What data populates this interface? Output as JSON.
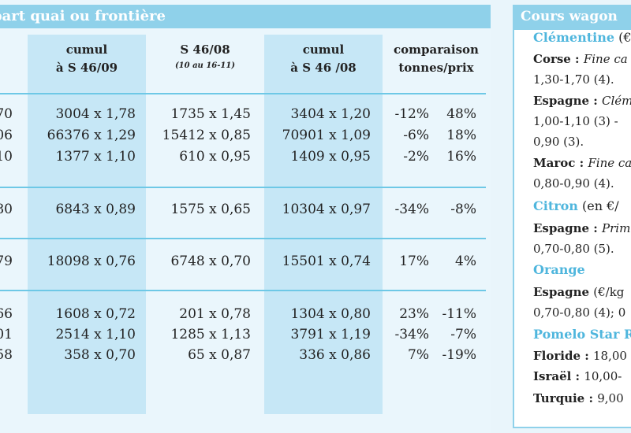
{
  "left": {
    "header": "part quai ou frontière",
    "columns": [
      {
        "line1": "",
        "line2": ")"
      },
      {
        "line1": "cumul",
        "line2": "à S 46/09"
      },
      {
        "line1": "S 46/08",
        "line2": "(10 au 16-11)"
      },
      {
        "line1": "cumul",
        "line2": "à S 46 /08"
      },
      {
        "line1": "comparaison",
        "line2": "tonnes/prix"
      }
    ],
    "rows": [
      [
        "70",
        "3004 x 1,78",
        "1735 x 1,45",
        "3404 x 1,20",
        "-12%",
        "48%"
      ],
      [
        "06",
        "66376 x 1,29",
        "15412 x 0,85",
        "70901 x 1,09",
        "-6%",
        "18%"
      ],
      [
        "10",
        "1377 x 1,10",
        "610 x 0,95",
        "1409 x 0,95",
        "-2%",
        "16%"
      ],
      [
        "80",
        "6843 x 0,89",
        "1575 x 0,65",
        "10304 x 0,97",
        "-34%",
        "-8%"
      ],
      [
        "79",
        "18098 x 0,76",
        "6748 x 0,70",
        "15501 x 0,74",
        "17%",
        "4%"
      ],
      [
        "66",
        "1608 x 0,72",
        "201 x 0,78",
        "1304 x 0,80",
        "23%",
        "-11%"
      ],
      [
        "01",
        "2514 x 1,10",
        "1285 x 1,13",
        "3791 x 1,19",
        "-34%",
        "-7%"
      ],
      [
        "58",
        "358 x 0,70",
        "65 x 0,87",
        "336 x 0,86",
        "7%",
        "-19%"
      ]
    ]
  },
  "right": {
    "header": "Cours wagon",
    "lines": [
      {
        "type": "sec",
        "a": "Clémentine",
        "b": " (€"
      },
      {
        "type": "txt",
        "a": "Corse : ",
        "b": "Fine ca"
      },
      {
        "type": "plain",
        "a": "1,30-1,70 (4)."
      },
      {
        "type": "txt",
        "a": "Espagne : ",
        "b": "Clém"
      },
      {
        "type": "plain",
        "a": "1,00-1,10 (3) -"
      },
      {
        "type": "plain",
        "a": "0,90 (3)."
      },
      {
        "type": "txt",
        "a": "Maroc : ",
        "b": "Fine ca"
      },
      {
        "type": "plain",
        "a": "0,80-0,90 (4)."
      },
      {
        "type": "sec",
        "a": "Citron",
        "b": " (en €/"
      },
      {
        "type": "txt",
        "a": "Espagne : ",
        "b": "Prim"
      },
      {
        "type": "plain",
        "a": "0,70-0,80 (5)."
      },
      {
        "type": "sec",
        "a": "Orange",
        "b": ""
      },
      {
        "type": "txtn",
        "a": "Espagne ",
        "b": "(€/kg"
      },
      {
        "type": "plain",
        "a": "0,70-0,80 (4); 0"
      },
      {
        "type": "sec",
        "a": "Pomelo Star R",
        "b": ""
      },
      {
        "type": "txtn",
        "a": "Floride : ",
        "b": "18,00"
      },
      {
        "type": "txtn",
        "a": "Israël : ",
        "b": "10,00-"
      },
      {
        "type": "txtn",
        "a": "Turquie : ",
        "b": "9,00"
      }
    ]
  }
}
